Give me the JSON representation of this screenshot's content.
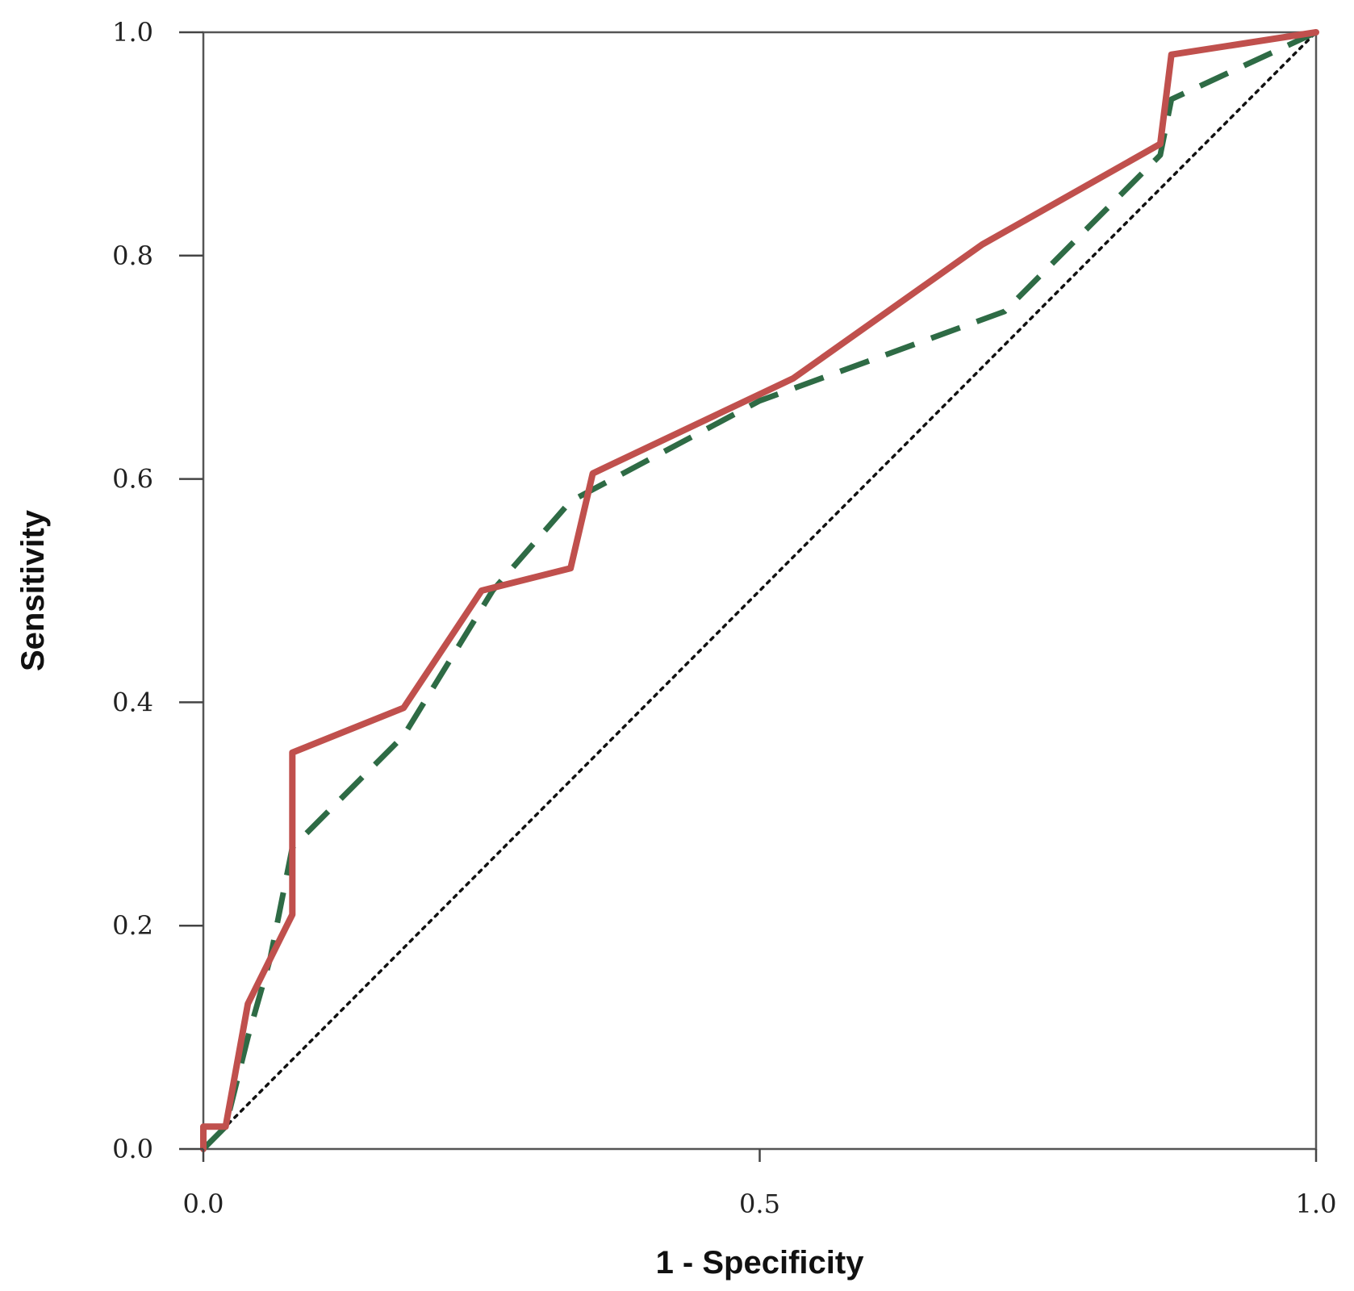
{
  "chart_data": {
    "type": "line",
    "title": "",
    "xlabel": "1 - Specificity",
    "ylabel": "Sensitivity",
    "xlim": [
      0,
      1
    ],
    "ylim": [
      0,
      1
    ],
    "x_ticks": [
      {
        "value": 0,
        "label": "0.0"
      },
      {
        "value": 0.5,
        "label": "0.5"
      },
      {
        "value": 1,
        "label": "1.0"
      }
    ],
    "y_ticks": [
      {
        "value": 0,
        "label": "0.0"
      },
      {
        "value": 0.2,
        "label": "0.2"
      },
      {
        "value": 0.4,
        "label": "0.4"
      },
      {
        "value": 0.6,
        "label": "0.6"
      },
      {
        "value": 0.8,
        "label": "0.8"
      },
      {
        "value": 1,
        "label": "1.0"
      }
    ],
    "grid": false,
    "legend": "none",
    "series": [
      {
        "style": "solid",
        "color": "#c0504d",
        "points": [
          [
            0,
            0
          ],
          [
            0,
            0.02
          ],
          [
            0.02,
            0.02
          ],
          [
            0.04,
            0.13
          ],
          [
            0.07,
            0.19
          ],
          [
            0.08,
            0.21
          ],
          [
            0.08,
            0.355
          ],
          [
            0.18,
            0.395
          ],
          [
            0.25,
            0.5
          ],
          [
            0.33,
            0.52
          ],
          [
            0.35,
            0.605
          ],
          [
            0.53,
            0.69
          ],
          [
            0.7,
            0.81
          ],
          [
            0.86,
            0.9
          ],
          [
            0.87,
            0.98
          ],
          [
            1.0,
            1.0
          ]
        ]
      },
      {
        "style": "dashed",
        "color": "#2e6b45",
        "points": [
          [
            0,
            0
          ],
          [
            0.02,
            0.02
          ],
          [
            0.04,
            0.1
          ],
          [
            0.06,
            0.17
          ],
          [
            0.08,
            0.27
          ],
          [
            0.18,
            0.37
          ],
          [
            0.26,
            0.5
          ],
          [
            0.33,
            0.58
          ],
          [
            0.5,
            0.67
          ],
          [
            0.72,
            0.75
          ],
          [
            0.86,
            0.89
          ],
          [
            0.87,
            0.94
          ],
          [
            1.0,
            1.0
          ]
        ]
      },
      {
        "style": "dotted",
        "color": "#111111",
        "points": [
          [
            0,
            0
          ],
          [
            1,
            1
          ]
        ]
      }
    ]
  }
}
